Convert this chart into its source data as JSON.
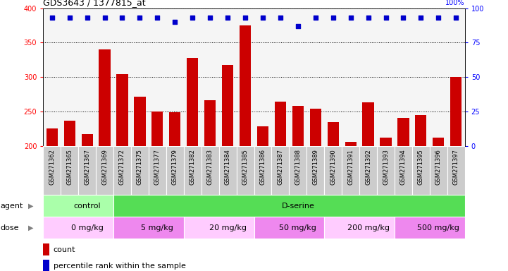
{
  "title": "GDS3643 / 1377815_at",
  "samples": [
    "GSM271362",
    "GSM271365",
    "GSM271367",
    "GSM271369",
    "GSM271372",
    "GSM271375",
    "GSM271377",
    "GSM271379",
    "GSM271382",
    "GSM271383",
    "GSM271384",
    "GSM271385",
    "GSM271386",
    "GSM271387",
    "GSM271388",
    "GSM271389",
    "GSM271390",
    "GSM271391",
    "GSM271392",
    "GSM271393",
    "GSM271394",
    "GSM271395",
    "GSM271396",
    "GSM271397"
  ],
  "counts": [
    226,
    237,
    218,
    340,
    305,
    272,
    250,
    249,
    328,
    267,
    318,
    375,
    229,
    265,
    259,
    254,
    235,
    207,
    264,
    213,
    241,
    245,
    213,
    300
  ],
  "percentiles": [
    93,
    93,
    93,
    93,
    93,
    93,
    93,
    90,
    93,
    93,
    93,
    93,
    93,
    93,
    87,
    93,
    93,
    93,
    93,
    93,
    93,
    93,
    93,
    93
  ],
  "bar_color": "#cc0000",
  "dot_color": "#0000cc",
  "ylim_left": [
    200,
    400
  ],
  "ylim_right": [
    0,
    100
  ],
  "yticks_left": [
    200,
    250,
    300,
    350,
    400
  ],
  "yticks_right": [
    0,
    25,
    50,
    75,
    100
  ],
  "agent_groups": [
    {
      "label": "control",
      "start": 0,
      "end": 4,
      "color": "#aaffaa"
    },
    {
      "label": "D-serine",
      "start": 4,
      "end": 24,
      "color": "#55dd55"
    }
  ],
  "dose_groups": [
    {
      "label": "0 mg/kg",
      "start": 0,
      "end": 4,
      "color": "#ffccff"
    },
    {
      "label": "5 mg/kg",
      "start": 4,
      "end": 8,
      "color": "#ee88ee"
    },
    {
      "label": "20 mg/kg",
      "start": 8,
      "end": 12,
      "color": "#ffccff"
    },
    {
      "label": "50 mg/kg",
      "start": 12,
      "end": 16,
      "color": "#ee88ee"
    },
    {
      "label": "200 mg/kg",
      "start": 16,
      "end": 20,
      "color": "#ffccff"
    },
    {
      "label": "500 mg/kg",
      "start": 20,
      "end": 24,
      "color": "#ee88ee"
    }
  ],
  "legend_count_color": "#cc0000",
  "legend_dot_color": "#0000cc",
  "plot_bg": "#f5f5f5",
  "xlabel_bg": "#cccccc"
}
